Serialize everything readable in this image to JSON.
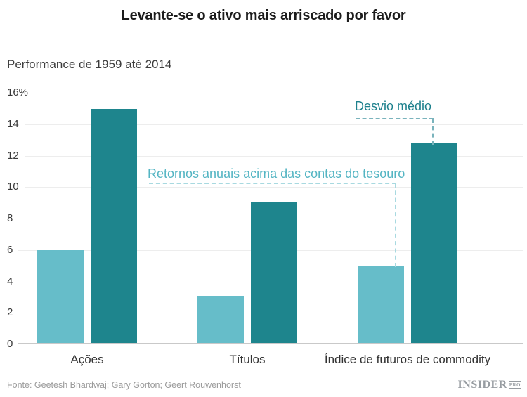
{
  "title": "Levante-se o ativo mais arriscado por favor",
  "subtitle": "Performance de 1959 até 2014",
  "footer": {
    "source": "Fonte: Geetesh Bhardwaj; Gary Gorton; Geert Rouwenhorst",
    "brand_name": "INSIDER",
    "brand_suffix": "PRO"
  },
  "colors": {
    "series_light": "#66bdc9",
    "series_dark": "#1e858d",
    "annotation_light_text": "#54b5c3",
    "annotation_dark_text": "#1e818d",
    "gridline": "#ededed",
    "baseline": "#c9c9c9",
    "axis_text": "#3a3a3a",
    "footer_text": "#9b9b9b"
  },
  "chart_data": {
    "type": "bar",
    "categories": [
      "Ações",
      "Títulos",
      "Índice de futuros de commodity"
    ],
    "series": [
      {
        "name": "Retornos anuais acima das contas do tesouro",
        "color": "#66bdc9",
        "values": [
          5.9,
          3.0,
          4.9
        ]
      },
      {
        "name": "Desvio médio",
        "color": "#1e858d",
        "values": [
          14.9,
          9.0,
          12.7
        ]
      }
    ],
    "title": "Levante-se o ativo mais arriscado por favor",
    "subtitle": "Performance de 1959 até 2014",
    "xlabel": "",
    "ylabel": "",
    "ylim": [
      0,
      16
    ],
    "ytick_step": 2,
    "ytick_labels": [
      "0",
      "2",
      "4",
      "6",
      "8",
      "10",
      "12",
      "14",
      "16%"
    ],
    "grid": true,
    "legend_position": "inline-annotations"
  }
}
